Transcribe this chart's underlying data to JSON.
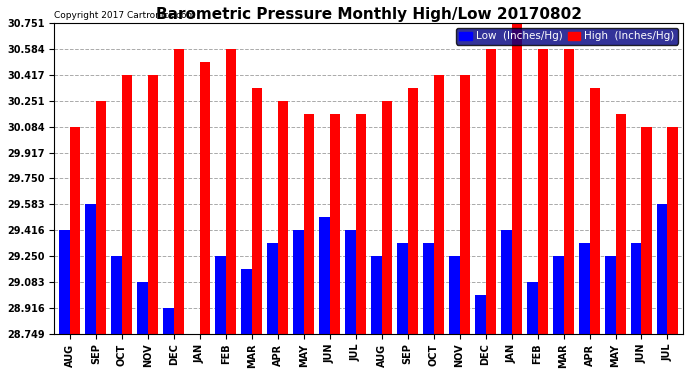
{
  "title": "Barometric Pressure Monthly High/Low 20170802",
  "copyright": "Copyright 2017 Cartronics.com",
  "legend_low": "Low  (Inches/Hg)",
  "legend_high": "High  (Inches/Hg)",
  "months": [
    "AUG",
    "SEP",
    "OCT",
    "NOV",
    "DEC",
    "JAN",
    "FEB",
    "MAR",
    "APR",
    "MAY",
    "JUN",
    "JUL",
    "AUG",
    "SEP",
    "OCT",
    "NOV",
    "DEC",
    "JAN",
    "FEB",
    "MAR",
    "APR",
    "MAY",
    "JUN",
    "JUL"
  ],
  "high_values": [
    30.084,
    30.251,
    30.417,
    30.417,
    30.584,
    30.5,
    30.584,
    30.334,
    30.251,
    30.167,
    30.167,
    30.167,
    30.251,
    30.334,
    30.417,
    30.417,
    30.584,
    30.751,
    30.584,
    30.584,
    30.334,
    30.167,
    30.084,
    30.084
  ],
  "low_values": [
    29.416,
    29.583,
    29.25,
    29.083,
    28.916,
    28.749,
    29.25,
    29.167,
    29.333,
    29.416,
    29.5,
    29.416,
    29.25,
    29.333,
    29.333,
    29.25,
    29.0,
    29.416,
    29.083,
    29.25,
    29.333,
    29.25,
    29.333,
    29.583
  ],
  "ylim_min": 28.749,
  "ylim_max": 30.751,
  "yticks": [
    28.749,
    28.916,
    29.083,
    29.25,
    29.416,
    29.583,
    29.75,
    29.917,
    30.084,
    30.251,
    30.417,
    30.584,
    30.751
  ],
  "low_color": "#0000ff",
  "high_color": "#ff0000",
  "bg_color": "#ffffff",
  "grid_color": "#aaaaaa",
  "title_fontsize": 11,
  "tick_fontsize": 7,
  "legend_fontsize": 7.5
}
